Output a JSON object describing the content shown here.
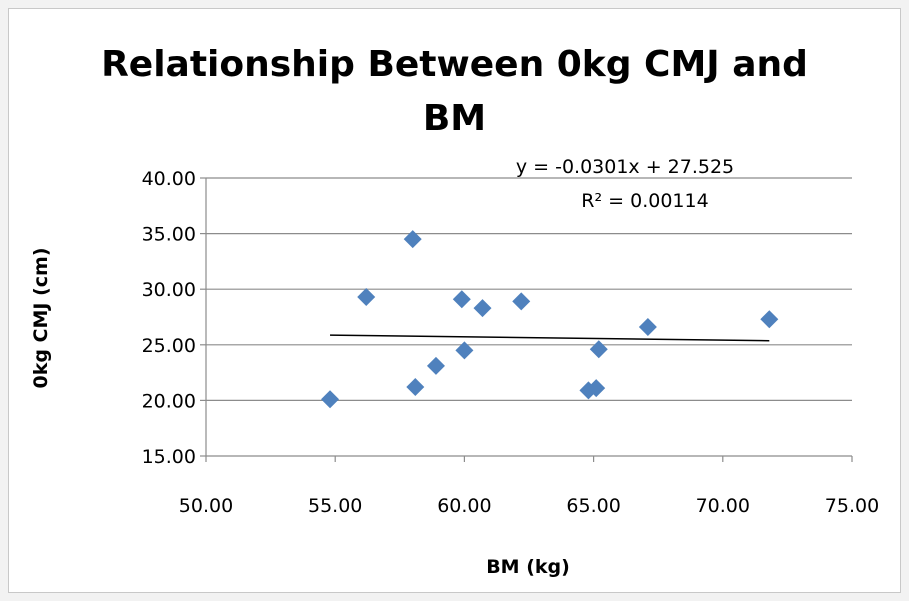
{
  "chart_data": {
    "type": "scatter",
    "title_lines": [
      "Relationship Between 0kg CMJ and",
      "BM"
    ],
    "xlabel": "BM (kg)",
    "ylabel": "0kg CMJ (cm)",
    "xlim": [
      50,
      75
    ],
    "ylim": [
      15,
      40
    ],
    "xticks": [
      "50.00",
      "55.00",
      "60.00",
      "65.00",
      "70.00",
      "75.00"
    ],
    "yticks": [
      "15.00",
      "20.00",
      "25.00",
      "30.00",
      "35.00",
      "40.00"
    ],
    "grid": true,
    "legend": "none",
    "marker_color": "#4f81bd",
    "points": [
      {
        "x": 54.8,
        "y": 20.1
      },
      {
        "x": 56.2,
        "y": 29.3
      },
      {
        "x": 58.0,
        "y": 34.5
      },
      {
        "x": 58.1,
        "y": 21.2
      },
      {
        "x": 58.9,
        "y": 23.1
      },
      {
        "x": 59.9,
        "y": 29.1
      },
      {
        "x": 60.0,
        "y": 24.5
      },
      {
        "x": 60.7,
        "y": 28.3
      },
      {
        "x": 62.2,
        "y": 28.9
      },
      {
        "x": 64.8,
        "y": 20.9
      },
      {
        "x": 65.1,
        "y": 21.1
      },
      {
        "x": 65.2,
        "y": 24.6
      },
      {
        "x": 67.1,
        "y": 26.6
      },
      {
        "x": 71.8,
        "y": 27.3
      }
    ],
    "trendline": {
      "x_range": [
        54.8,
        71.8
      ],
      "slope": -0.0301,
      "intercept": 27.525,
      "equation": "y = -0.0301x + 27.525",
      "r_squared": "R² = 0.00114"
    }
  }
}
